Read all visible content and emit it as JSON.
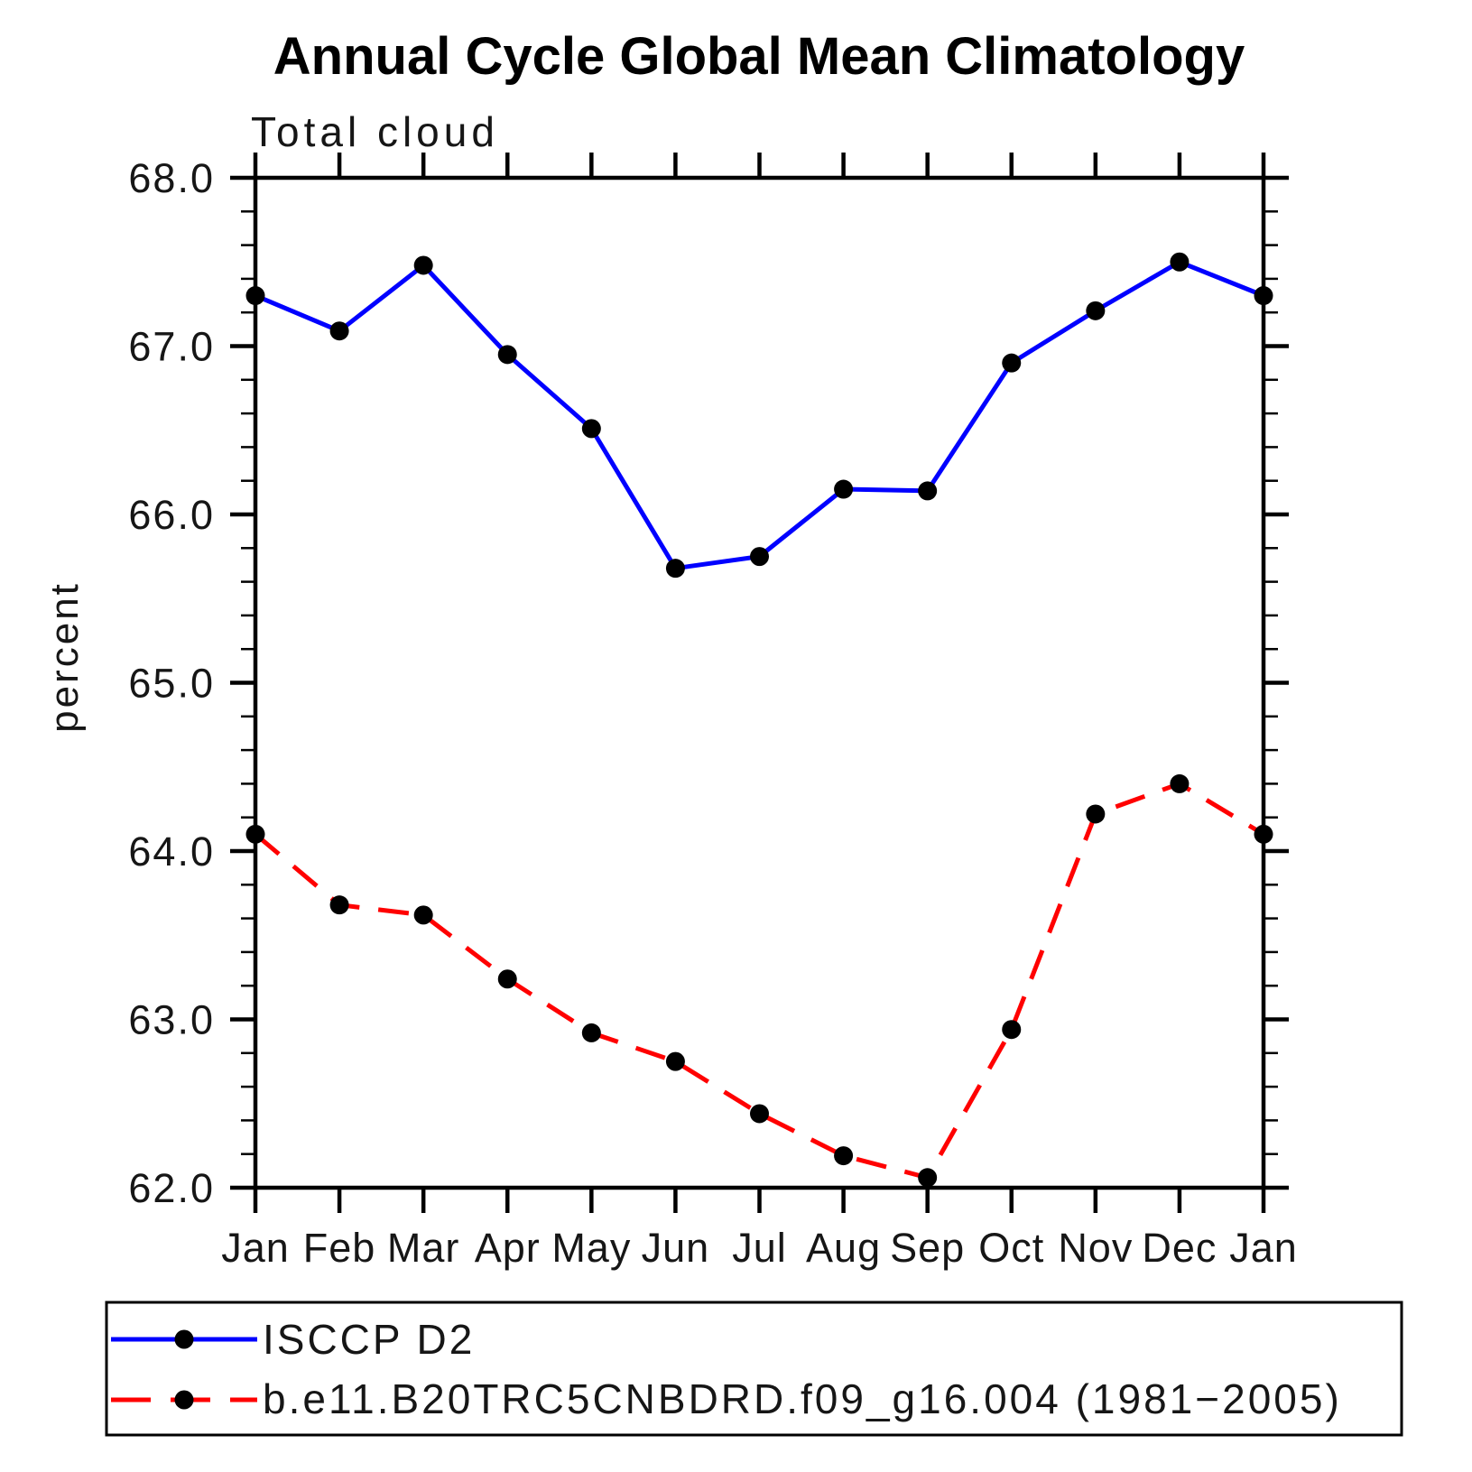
{
  "chart_data": {
    "type": "line",
    "title": "Annual Cycle Global Mean Climatology",
    "subtitle": "Total cloud",
    "ylabel": "percent",
    "ylim": [
      62.0,
      68.0
    ],
    "ytick_values": [
      68.0,
      67.0,
      66.0,
      65.0,
      64.0,
      63.0,
      62.0
    ],
    "ytick_labels": [
      "68.0",
      "67.0",
      "66.0",
      "65.0",
      "64.0",
      "63.0",
      "62.0"
    ],
    "yminor_step": 0.2,
    "categories": [
      "Jan",
      "Feb",
      "Mar",
      "Apr",
      "May",
      "Jun",
      "Jul",
      "Aug",
      "Sep",
      "Oct",
      "Nov",
      "Dec",
      "Jan"
    ],
    "grid": false,
    "legend_position": "bottom-left-box",
    "series": [
      {
        "name": "ISCCP D2",
        "line_color": "#0000ff",
        "line_style": "solid",
        "marker": "filled-circle",
        "marker_color": "#000000",
        "values": [
          67.3,
          67.09,
          67.48,
          66.95,
          66.51,
          65.68,
          65.75,
          66.15,
          66.14,
          66.9,
          67.21,
          67.5,
          67.3
        ]
      },
      {
        "name": "b.e11.B20TRC5CNBDRD.f09_g16.004 (1981−2005)",
        "line_color": "#ff0000",
        "line_style": "dashed",
        "marker": "filled-circle",
        "marker_color": "#000000",
        "values": [
          64.1,
          63.68,
          63.62,
          63.24,
          62.92,
          62.75,
          62.44,
          62.19,
          62.06,
          62.94,
          64.22,
          64.4,
          64.1
        ]
      }
    ]
  }
}
